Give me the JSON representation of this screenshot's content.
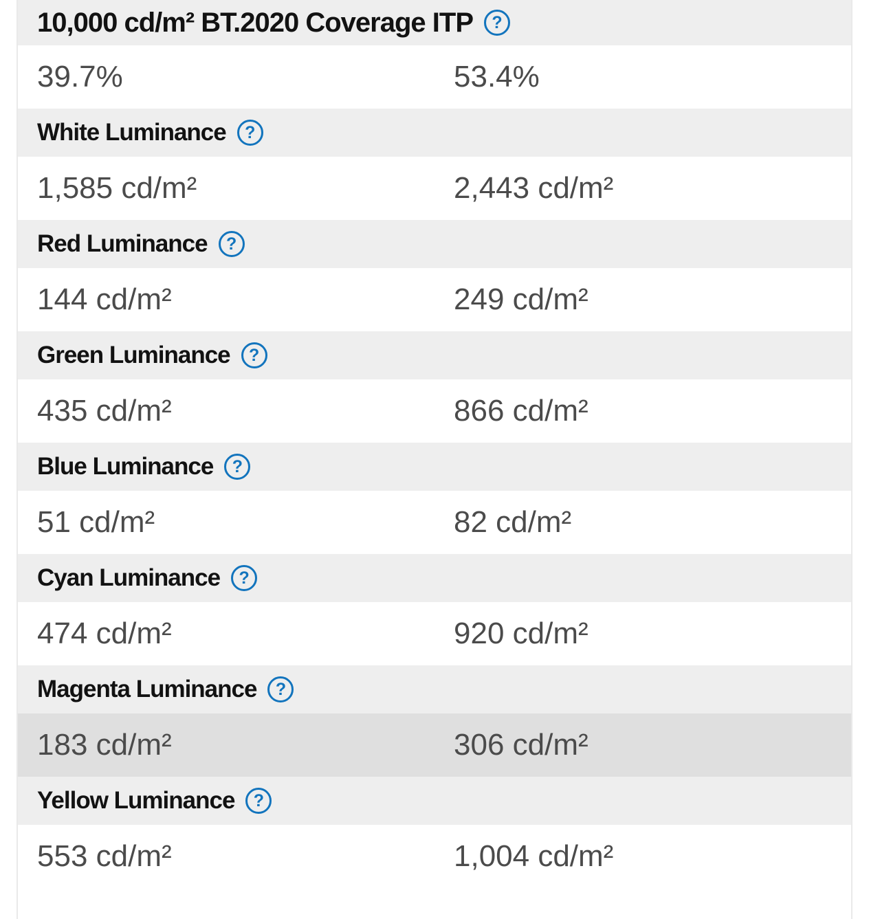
{
  "table": {
    "help_icon_glyph": "?",
    "colors": {
      "header_bg": "#eeeeee",
      "row_bg": "#ffffff",
      "highlight_row_bg": "#dfdfdf",
      "header_text": "#121212",
      "value_text": "#4b4b4b",
      "help_icon_blue": "#1274bd"
    },
    "rows": [
      {
        "label": "10,000 cd/m² BT.2020 Coverage ITP",
        "left": "39.7%",
        "right": "53.4%",
        "highlighted": false
      },
      {
        "label": "White Luminance",
        "left": "1,585 cd/m²",
        "right": "2,443 cd/m²",
        "highlighted": false
      },
      {
        "label": "Red Luminance",
        "left": "144 cd/m²",
        "right": "249 cd/m²",
        "highlighted": false
      },
      {
        "label": "Green Luminance",
        "left": "435 cd/m²",
        "right": "866 cd/m²",
        "highlighted": false
      },
      {
        "label": "Blue Luminance",
        "left": "51 cd/m²",
        "right": "82 cd/m²",
        "highlighted": false
      },
      {
        "label": "Cyan Luminance",
        "left": "474 cd/m²",
        "right": "920 cd/m²",
        "highlighted": false
      },
      {
        "label": "Magenta Luminance",
        "left": "183 cd/m²",
        "right": "306 cd/m²",
        "highlighted": true
      },
      {
        "label": "Yellow Luminance",
        "left": "553 cd/m²",
        "right": "1,004 cd/m²",
        "highlighted": false
      }
    ]
  }
}
